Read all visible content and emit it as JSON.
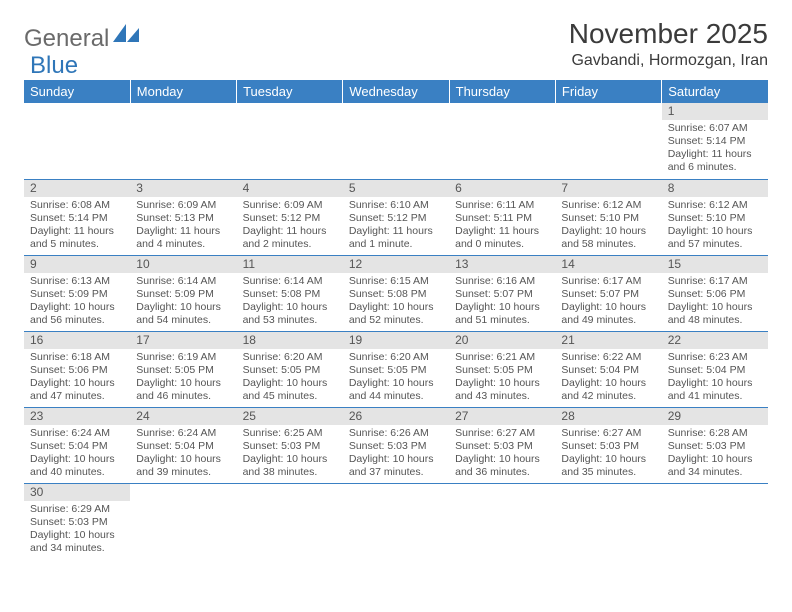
{
  "logo": {
    "part1": "General",
    "part2": "Blue"
  },
  "title": "November 2025",
  "location": "Gavbandi, Hormozgan, Iran",
  "colors": {
    "header_bg": "#3a80c3",
    "header_text": "#ffffff",
    "daynum_bg": "#e4e4e4",
    "border": "#3a80c3",
    "text": "#555555",
    "logo_gray": "#6a6a6a",
    "logo_blue": "#2f76b8"
  },
  "weekdays": [
    "Sunday",
    "Monday",
    "Tuesday",
    "Wednesday",
    "Thursday",
    "Friday",
    "Saturday"
  ],
  "weeks": [
    [
      null,
      null,
      null,
      null,
      null,
      null,
      {
        "n": "1",
        "sr": "6:07 AM",
        "ss": "5:14 PM",
        "dl": "11 hours and 6 minutes."
      }
    ],
    [
      {
        "n": "2",
        "sr": "6:08 AM",
        "ss": "5:14 PM",
        "dl": "11 hours and 5 minutes."
      },
      {
        "n": "3",
        "sr": "6:09 AM",
        "ss": "5:13 PM",
        "dl": "11 hours and 4 minutes."
      },
      {
        "n": "4",
        "sr": "6:09 AM",
        "ss": "5:12 PM",
        "dl": "11 hours and 2 minutes."
      },
      {
        "n": "5",
        "sr": "6:10 AM",
        "ss": "5:12 PM",
        "dl": "11 hours and 1 minute."
      },
      {
        "n": "6",
        "sr": "6:11 AM",
        "ss": "5:11 PM",
        "dl": "11 hours and 0 minutes."
      },
      {
        "n": "7",
        "sr": "6:12 AM",
        "ss": "5:10 PM",
        "dl": "10 hours and 58 minutes."
      },
      {
        "n": "8",
        "sr": "6:12 AM",
        "ss": "5:10 PM",
        "dl": "10 hours and 57 minutes."
      }
    ],
    [
      {
        "n": "9",
        "sr": "6:13 AM",
        "ss": "5:09 PM",
        "dl": "10 hours and 56 minutes."
      },
      {
        "n": "10",
        "sr": "6:14 AM",
        "ss": "5:09 PM",
        "dl": "10 hours and 54 minutes."
      },
      {
        "n": "11",
        "sr": "6:14 AM",
        "ss": "5:08 PM",
        "dl": "10 hours and 53 minutes."
      },
      {
        "n": "12",
        "sr": "6:15 AM",
        "ss": "5:08 PM",
        "dl": "10 hours and 52 minutes."
      },
      {
        "n": "13",
        "sr": "6:16 AM",
        "ss": "5:07 PM",
        "dl": "10 hours and 51 minutes."
      },
      {
        "n": "14",
        "sr": "6:17 AM",
        "ss": "5:07 PM",
        "dl": "10 hours and 49 minutes."
      },
      {
        "n": "15",
        "sr": "6:17 AM",
        "ss": "5:06 PM",
        "dl": "10 hours and 48 minutes."
      }
    ],
    [
      {
        "n": "16",
        "sr": "6:18 AM",
        "ss": "5:06 PM",
        "dl": "10 hours and 47 minutes."
      },
      {
        "n": "17",
        "sr": "6:19 AM",
        "ss": "5:05 PM",
        "dl": "10 hours and 46 minutes."
      },
      {
        "n": "18",
        "sr": "6:20 AM",
        "ss": "5:05 PM",
        "dl": "10 hours and 45 minutes."
      },
      {
        "n": "19",
        "sr": "6:20 AM",
        "ss": "5:05 PM",
        "dl": "10 hours and 44 minutes."
      },
      {
        "n": "20",
        "sr": "6:21 AM",
        "ss": "5:05 PM",
        "dl": "10 hours and 43 minutes."
      },
      {
        "n": "21",
        "sr": "6:22 AM",
        "ss": "5:04 PM",
        "dl": "10 hours and 42 minutes."
      },
      {
        "n": "22",
        "sr": "6:23 AM",
        "ss": "5:04 PM",
        "dl": "10 hours and 41 minutes."
      }
    ],
    [
      {
        "n": "23",
        "sr": "6:24 AM",
        "ss": "5:04 PM",
        "dl": "10 hours and 40 minutes."
      },
      {
        "n": "24",
        "sr": "6:24 AM",
        "ss": "5:04 PM",
        "dl": "10 hours and 39 minutes."
      },
      {
        "n": "25",
        "sr": "6:25 AM",
        "ss": "5:03 PM",
        "dl": "10 hours and 38 minutes."
      },
      {
        "n": "26",
        "sr": "6:26 AM",
        "ss": "5:03 PM",
        "dl": "10 hours and 37 minutes."
      },
      {
        "n": "27",
        "sr": "6:27 AM",
        "ss": "5:03 PM",
        "dl": "10 hours and 36 minutes."
      },
      {
        "n": "28",
        "sr": "6:27 AM",
        "ss": "5:03 PM",
        "dl": "10 hours and 35 minutes."
      },
      {
        "n": "29",
        "sr": "6:28 AM",
        "ss": "5:03 PM",
        "dl": "10 hours and 34 minutes."
      }
    ],
    [
      {
        "n": "30",
        "sr": "6:29 AM",
        "ss": "5:03 PM",
        "dl": "10 hours and 34 minutes."
      },
      null,
      null,
      null,
      null,
      null,
      null
    ]
  ],
  "labels": {
    "sunrise": "Sunrise:",
    "sunset": "Sunset:",
    "daylight": "Daylight:"
  }
}
